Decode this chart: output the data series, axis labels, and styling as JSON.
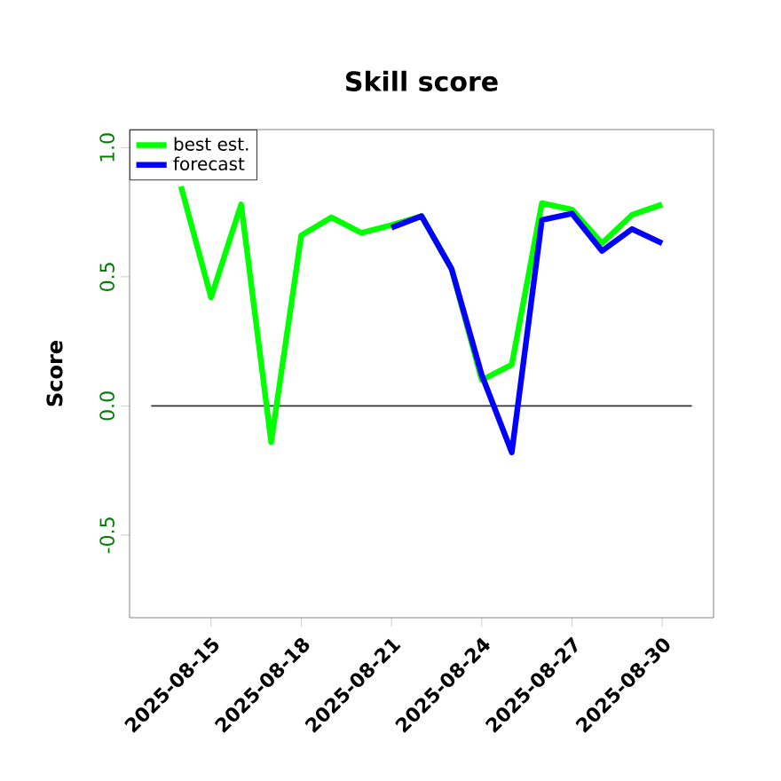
{
  "chart_data": {
    "type": "line",
    "title": "Skill score",
    "ylabel": "Score",
    "x": [
      "2025-08-14",
      "2025-08-15",
      "2025-08-16",
      "2025-08-17",
      "2025-08-18",
      "2025-08-19",
      "2025-08-20",
      "2025-08-21",
      "2025-08-22",
      "2025-08-23",
      "2025-08-24",
      "2025-08-25",
      "2025-08-26",
      "2025-08-27",
      "2025-08-28",
      "2025-08-29",
      "2025-08-30"
    ],
    "series": [
      {
        "name": "best est.",
        "color": "#00ff00",
        "values": [
          0.85,
          0.42,
          0.78,
          -0.14,
          0.66,
          0.73,
          0.67,
          0.7,
          0.735,
          0.53,
          0.1,
          0.16,
          0.785,
          0.76,
          0.63,
          0.74,
          0.78
        ]
      },
      {
        "name": "forecast",
        "color": "#0000ff",
        "values": [
          null,
          null,
          null,
          null,
          null,
          null,
          null,
          0.69,
          0.735,
          0.53,
          0.12,
          -0.18,
          0.72,
          0.745,
          0.6,
          0.685,
          0.63
        ]
      }
    ],
    "xlim": [
      "2025-08-12T07:00",
      "2025-08-31T17:00"
    ],
    "xticks": [
      "2025-08-15",
      "2025-08-18",
      "2025-08-21",
      "2025-08-24",
      "2025-08-27",
      "2025-08-30"
    ],
    "ylim": [
      -0.82,
      1.07
    ],
    "yticks": [
      {
        "value": -0.5,
        "label": "-0.5"
      },
      {
        "value": 0,
        "label": "0.0"
      },
      {
        "value": 0.5,
        "label": "0.5"
      },
      {
        "value": 1,
        "label": "1.0"
      }
    ],
    "ref_lines": [
      {
        "axis": "y",
        "value": 0,
        "color": "#333333"
      }
    ],
    "legend": "top left",
    "grid": false,
    "marker": "none",
    "line_style": "solid"
  }
}
